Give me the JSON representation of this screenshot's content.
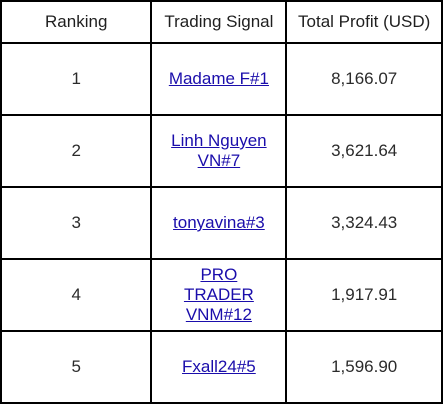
{
  "colors": {
    "link": "#1a0dab",
    "border": "#000000",
    "text": "#2b2b2b"
  },
  "table": {
    "headers": [
      "Ranking",
      "Trading Signal",
      "Total Profit (USD)"
    ],
    "rows": [
      {
        "rank": "1",
        "signal": "Madame F#1",
        "profit": "8,166.07"
      },
      {
        "rank": "2",
        "signal": "Linh Nguyen VN#7",
        "profit": "3,621.64"
      },
      {
        "rank": "3",
        "signal": "tonyavina#3",
        "profit": "3,324.43"
      },
      {
        "rank": "4",
        "signal": "PRO TRADER VNM#12",
        "profit": "1,917.91"
      },
      {
        "rank": "5",
        "signal": "Fxall24#5",
        "profit": "1,596.90"
      }
    ]
  }
}
